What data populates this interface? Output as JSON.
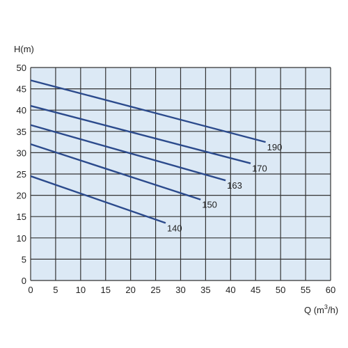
{
  "chart_data": {
    "type": "line",
    "title": "",
    "xlabel": "Q (m³/h)",
    "xlabel_main": "Q (m",
    "xlabel_sup": "3",
    "xlabel_tail": "/h)",
    "ylabel": "H(m)",
    "xlim": [
      0,
      60
    ],
    "ylim": [
      0,
      50
    ],
    "x_ticks": [
      0,
      5,
      10,
      15,
      20,
      25,
      30,
      35,
      40,
      45,
      50,
      55,
      60
    ],
    "y_ticks": [
      0,
      5,
      10,
      15,
      20,
      25,
      30,
      35,
      40,
      45,
      50
    ],
    "grid": true,
    "legend": "none",
    "colors": {
      "plot_background": "#dce9f5",
      "grid": "#333333",
      "line": "#2b4a8c"
    },
    "series": [
      {
        "name": "190",
        "x": [
          0,
          47
        ],
        "y": [
          47,
          32.5
        ]
      },
      {
        "name": "170",
        "x": [
          0,
          44
        ],
        "y": [
          41,
          27.5
        ]
      },
      {
        "name": "163",
        "x": [
          0,
          39
        ],
        "y": [
          36.5,
          23.5
        ]
      },
      {
        "name": "150",
        "x": [
          0,
          34
        ],
        "y": [
          32,
          19
        ]
      },
      {
        "name": "140",
        "x": [
          0,
          27
        ],
        "y": [
          24.5,
          13.5
        ]
      }
    ]
  }
}
